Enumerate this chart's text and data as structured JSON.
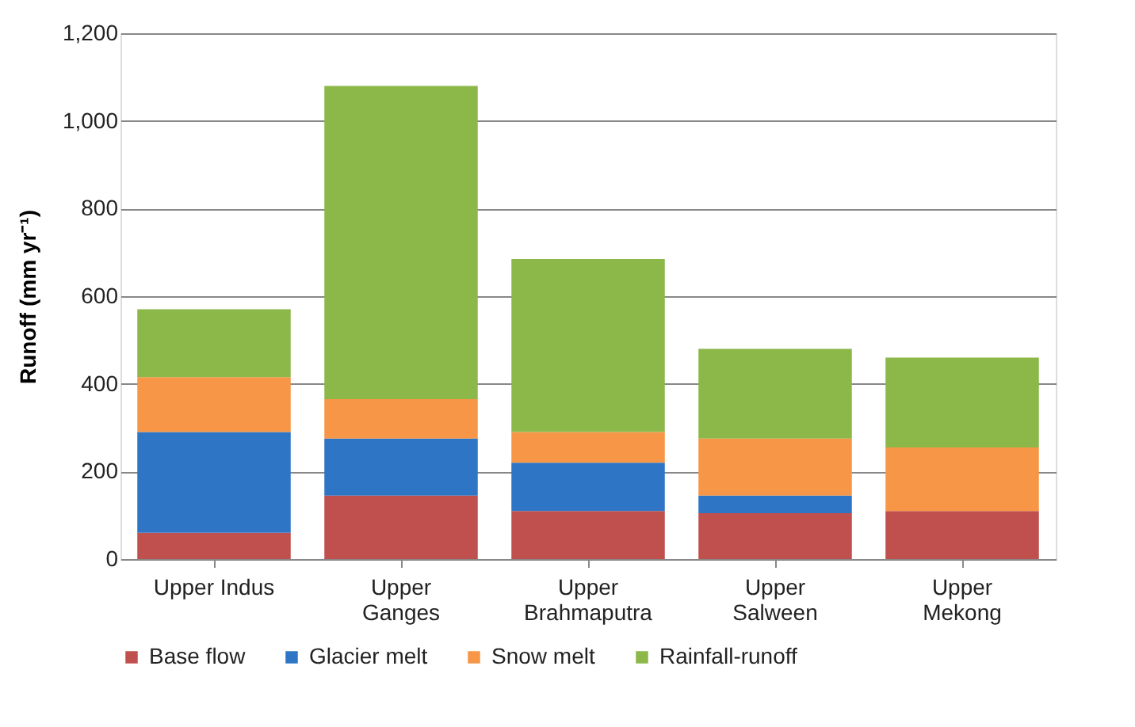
{
  "chart_data": {
    "type": "bar",
    "stacked": true,
    "ylabel": "Runoff (mm yr⁻¹)",
    "categories": [
      "Upper Indus",
      "Upper Ganges",
      "Upper Brahmaputra",
      "Upper Salween",
      "Upper Mekong"
    ],
    "series": [
      {
        "name": "Base flow",
        "color": "#c0504d",
        "values": [
          60,
          145,
          110,
          105,
          110
        ]
      },
      {
        "name": "Glacier melt",
        "color": "#2e75c6",
        "values": [
          230,
          130,
          110,
          40,
          0
        ]
      },
      {
        "name": "Snow melt",
        "color": "#f79646",
        "values": [
          125,
          90,
          70,
          130,
          145
        ]
      },
      {
        "name": "Rainfall-runoff",
        "color": "#8cb84a",
        "values": [
          155,
          715,
          395,
          205,
          205
        ]
      }
    ],
    "ylim": [
      0,
      1200
    ],
    "yticks": [
      0,
      200,
      400,
      600,
      800,
      {
        "value": 1000,
        "label": "1,000"
      },
      {
        "value": 1200,
        "label": "1,200"
      }
    ],
    "grid": "y",
    "legend": "bottom"
  }
}
